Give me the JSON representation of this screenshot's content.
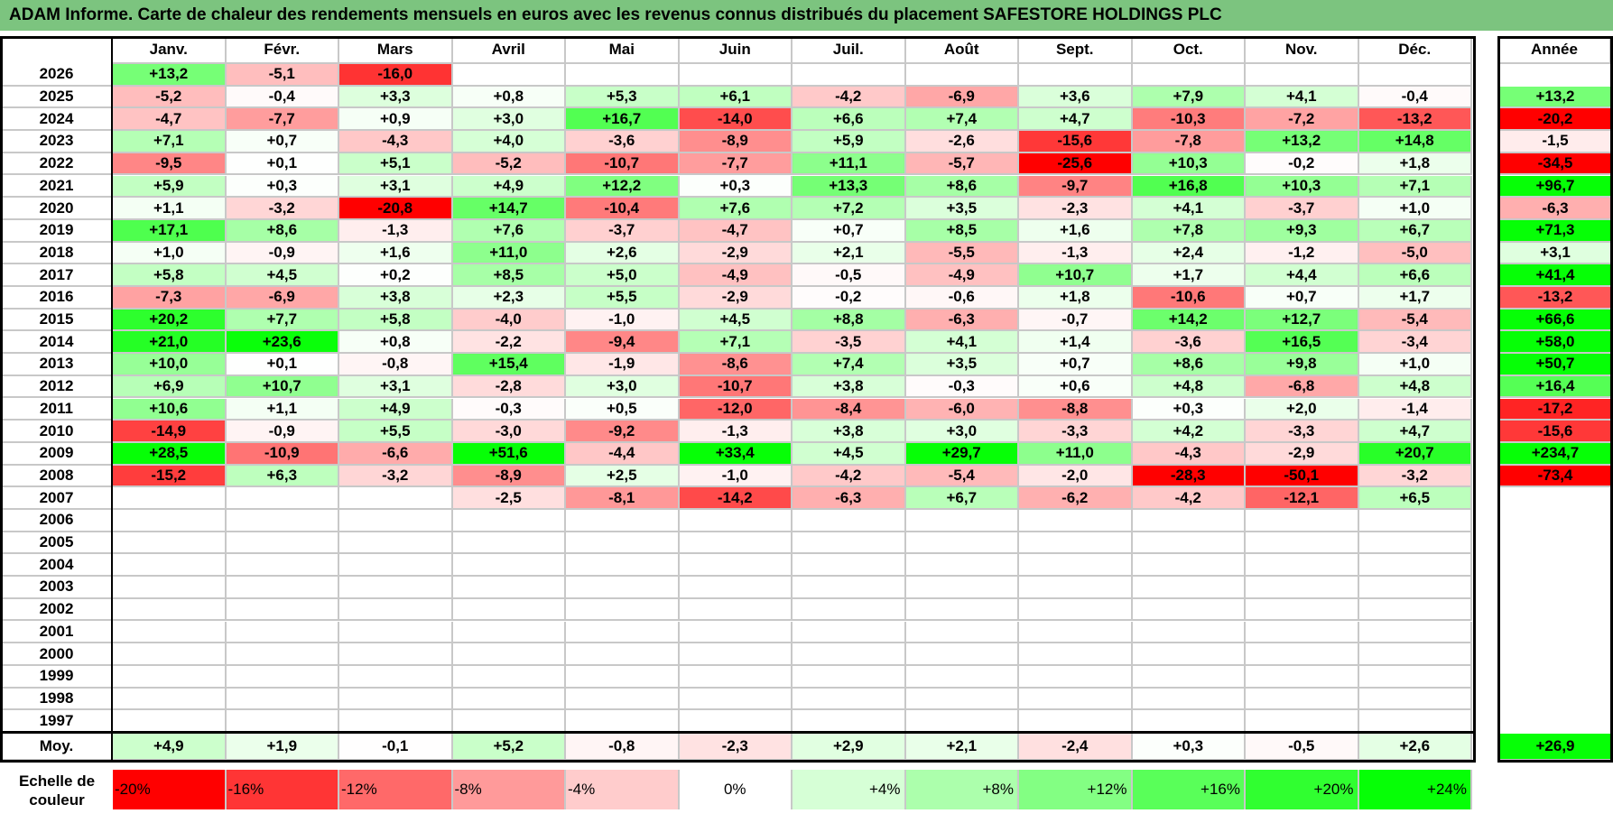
{
  "title": "ADAM Informe. Carte de chaleur des rendements mensuels en euros avec les revenus connus distribués du placement SAFESTORE HOLDINGS PLC",
  "chart_data": {
    "type": "heatmap",
    "title": "ADAM Informe. Carte de chaleur des rendements mensuels en euros avec les revenus connus distribués du placement SAFESTORE HOLDINGS PLC",
    "columns": [
      "Janv.",
      "Févr.",
      "Mars",
      "Avril",
      "Mai",
      "Juin",
      "Juil.",
      "Août",
      "Sept.",
      "Oct.",
      "Nov.",
      "Déc."
    ],
    "year_column_label": "Année",
    "rows": [
      {
        "year": "2026",
        "values": [
          "+13,2",
          "-5,1",
          "-16,0",
          "",
          "",
          "",
          "",
          "",
          "",
          "",
          "",
          ""
        ],
        "annual": ""
      },
      {
        "year": "2025",
        "values": [
          "-5,2",
          "-0,4",
          "+3,3",
          "+0,8",
          "+5,3",
          "+6,1",
          "-4,2",
          "-6,9",
          "+3,6",
          "+7,9",
          "+4,1",
          "-0,4"
        ],
        "annual": "+13,2"
      },
      {
        "year": "2024",
        "values": [
          "-4,7",
          "-7,7",
          "+0,9",
          "+3,0",
          "+16,7",
          "-14,0",
          "+6,6",
          "+7,4",
          "+4,7",
          "-10,3",
          "-7,2",
          "-13,2"
        ],
        "annual": "-20,2"
      },
      {
        "year": "2023",
        "values": [
          "+7,1",
          "+0,7",
          "-4,3",
          "+4,0",
          "-3,6",
          "-8,9",
          "+5,9",
          "-2,6",
          "-15,6",
          "-7,8",
          "+13,2",
          "+14,8"
        ],
        "annual": "-1,5"
      },
      {
        "year": "2022",
        "values": [
          "-9,5",
          "+0,1",
          "+5,1",
          "-5,2",
          "-10,7",
          "-7,7",
          "+11,1",
          "-5,7",
          "-25,6",
          "+10,3",
          "-0,2",
          "+1,8"
        ],
        "annual": "-34,5"
      },
      {
        "year": "2021",
        "values": [
          "+5,9",
          "+0,3",
          "+3,1",
          "+4,9",
          "+12,2",
          "+0,3",
          "+13,3",
          "+8,6",
          "-9,7",
          "+16,8",
          "+10,3",
          "+7,1"
        ],
        "annual": "+96,7"
      },
      {
        "year": "2020",
        "values": [
          "+1,1",
          "-3,2",
          "-20,8",
          "+14,7",
          "-10,4",
          "+7,6",
          "+7,2",
          "+3,5",
          "-2,3",
          "+4,1",
          "-3,7",
          "+1,0"
        ],
        "annual": "-6,3"
      },
      {
        "year": "2019",
        "values": [
          "+17,1",
          "+8,6",
          "-1,3",
          "+7,6",
          "-3,7",
          "-4,7",
          "+0,7",
          "+8,5",
          "+1,6",
          "+7,8",
          "+9,3",
          "+6,7"
        ],
        "annual": "+71,3"
      },
      {
        "year": "2018",
        "values": [
          "+1,0",
          "-0,9",
          "+1,6",
          "+11,0",
          "+2,6",
          "-2,9",
          "+2,1",
          "-5,5",
          "-1,3",
          "+2,4",
          "-1,2",
          "-5,0"
        ],
        "annual": "+3,1"
      },
      {
        "year": "2017",
        "values": [
          "+5,8",
          "+4,5",
          "+0,2",
          "+8,5",
          "+5,0",
          "-4,9",
          "-0,5",
          "-4,9",
          "+10,7",
          "+1,7",
          "+4,4",
          "+6,6"
        ],
        "annual": "+41,4"
      },
      {
        "year": "2016",
        "values": [
          "-7,3",
          "-6,9",
          "+3,8",
          "+2,3",
          "+5,5",
          "-2,9",
          "-0,2",
          "-0,6",
          "+1,8",
          "-10,6",
          "+0,7",
          "+1,7"
        ],
        "annual": "-13,2"
      },
      {
        "year": "2015",
        "values": [
          "+20,2",
          "+7,7",
          "+5,8",
          "-4,0",
          "-1,0",
          "+4,5",
          "+8,8",
          "-6,3",
          "-0,7",
          "+14,2",
          "+12,7",
          "-5,4"
        ],
        "annual": "+66,6"
      },
      {
        "year": "2014",
        "values": [
          "+21,0",
          "+23,6",
          "+0,8",
          "-2,2",
          "-9,4",
          "+7,1",
          "-3,5",
          "+4,1",
          "+1,4",
          "-3,6",
          "+16,5",
          "-3,4"
        ],
        "annual": "+58,0"
      },
      {
        "year": "2013",
        "values": [
          "+10,0",
          "+0,1",
          "-0,8",
          "+15,4",
          "-1,9",
          "-8,6",
          "+7,4",
          "+3,5",
          "+0,7",
          "+8,6",
          "+9,8",
          "+1,0"
        ],
        "annual": "+50,7"
      },
      {
        "year": "2012",
        "values": [
          "+6,9",
          "+10,7",
          "+3,1",
          "-2,8",
          "+3,0",
          "-10,7",
          "+3,8",
          "-0,3",
          "+0,6",
          "+4,8",
          "-6,8",
          "+4,8"
        ],
        "annual": "+16,4"
      },
      {
        "year": "2011",
        "values": [
          "+10,6",
          "+1,1",
          "+4,9",
          "-0,3",
          "+0,5",
          "-12,0",
          "-8,4",
          "-6,0",
          "-8,8",
          "+0,3",
          "+2,0",
          "-1,4"
        ],
        "annual": "-17,2"
      },
      {
        "year": "2010",
        "values": [
          "-14,9",
          "-0,9",
          "+5,5",
          "-3,0",
          "-9,2",
          "-1,3",
          "+3,8",
          "+3,0",
          "-3,3",
          "+4,2",
          "-3,3",
          "+4,7"
        ],
        "annual": "-15,6"
      },
      {
        "year": "2009",
        "values": [
          "+28,5",
          "-10,9",
          "-6,6",
          "+51,6",
          "-4,4",
          "+33,4",
          "+4,5",
          "+29,7",
          "+11,0",
          "-4,3",
          "-2,9",
          "+20,7"
        ],
        "annual": "+234,7"
      },
      {
        "year": "2008",
        "values": [
          "-15,2",
          "+6,3",
          "-3,2",
          "-8,9",
          "+2,5",
          "-1,0",
          "-4,2",
          "-5,4",
          "-2,0",
          "-28,3",
          "-50,1",
          "-3,2"
        ],
        "annual": "-73,4"
      },
      {
        "year": "2007",
        "values": [
          "",
          "",
          "",
          "-2,5",
          "-8,1",
          "-14,2",
          "-6,3",
          "+6,7",
          "-6,2",
          "-4,2",
          "-12,1",
          "+6,5"
        ],
        "annual": ""
      },
      {
        "year": "2006",
        "values": [
          "",
          "",
          "",
          "",
          "",
          "",
          "",
          "",
          "",
          "",
          "",
          ""
        ],
        "annual": ""
      },
      {
        "year": "2005",
        "values": [
          "",
          "",
          "",
          "",
          "",
          "",
          "",
          "",
          "",
          "",
          "",
          ""
        ],
        "annual": ""
      },
      {
        "year": "2004",
        "values": [
          "",
          "",
          "",
          "",
          "",
          "",
          "",
          "",
          "",
          "",
          "",
          ""
        ],
        "annual": ""
      },
      {
        "year": "2003",
        "values": [
          "",
          "",
          "",
          "",
          "",
          "",
          "",
          "",
          "",
          "",
          "",
          ""
        ],
        "annual": ""
      },
      {
        "year": "2002",
        "values": [
          "",
          "",
          "",
          "",
          "",
          "",
          "",
          "",
          "",
          "",
          "",
          ""
        ],
        "annual": ""
      },
      {
        "year": "2001",
        "values": [
          "",
          "",
          "",
          "",
          "",
          "",
          "",
          "",
          "",
          "",
          "",
          ""
        ],
        "annual": ""
      },
      {
        "year": "2000",
        "values": [
          "",
          "",
          "",
          "",
          "",
          "",
          "",
          "",
          "",
          "",
          "",
          ""
        ],
        "annual": ""
      },
      {
        "year": "1999",
        "values": [
          "",
          "",
          "",
          "",
          "",
          "",
          "",
          "",
          "",
          "",
          "",
          ""
        ],
        "annual": ""
      },
      {
        "year": "1998",
        "values": [
          "",
          "",
          "",
          "",
          "",
          "",
          "",
          "",
          "",
          "",
          "",
          ""
        ],
        "annual": ""
      },
      {
        "year": "1997",
        "values": [
          "",
          "",
          "",
          "",
          "",
          "",
          "",
          "",
          "",
          "",
          "",
          ""
        ],
        "annual": ""
      }
    ],
    "average": {
      "label": "Moy.",
      "values": [
        "+4,9",
        "+1,9",
        "-0,1",
        "+5,2",
        "-0,8",
        "-2,3",
        "+2,9",
        "+2,1",
        "-2,4",
        "+0,3",
        "-0,5",
        "+2,6"
      ],
      "annual": "+26,9"
    },
    "color_scale": {
      "label": "Echelle de couleur",
      "stops": [
        {
          "label": "-20%",
          "value": -20,
          "color": "#ff0000"
        },
        {
          "label": "-16%",
          "value": -16,
          "color": "#ff3535"
        },
        {
          "label": "-12%",
          "value": -12,
          "color": "#ff6969"
        },
        {
          "label": "-8%",
          "value": -8,
          "color": "#ff9a9a"
        },
        {
          "label": "-4%",
          "value": -4,
          "color": "#ffcccc"
        },
        {
          "label": "0%",
          "value": 0,
          "color": "#ffffff"
        },
        {
          "label": "+4%",
          "value": 4,
          "color": "#d6ffd6"
        },
        {
          "label": "+8%",
          "value": 8,
          "color": "#acffac"
        },
        {
          "label": "+12%",
          "value": 12,
          "color": "#83ff83"
        },
        {
          "label": "+16%",
          "value": 16,
          "color": "#59ff59"
        },
        {
          "label": "+20%",
          "value": 20,
          "color": "#30ff30"
        },
        {
          "label": "+24%",
          "value": 24,
          "color": "#06ff06"
        }
      ]
    }
  }
}
